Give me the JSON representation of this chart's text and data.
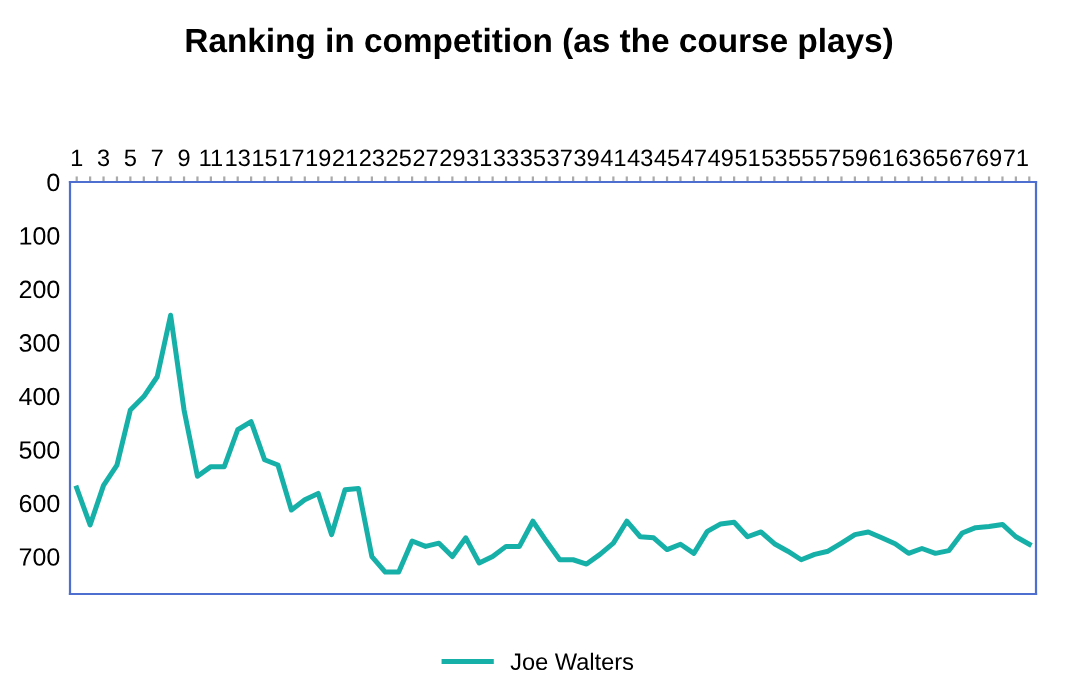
{
  "chart_data": {
    "type": "line",
    "title": "Ranking in competition (as the course plays)",
    "categories": [
      "1",
      null,
      "3",
      null,
      "5",
      null,
      "7",
      null,
      "9",
      null,
      "11",
      null,
      "13",
      null,
      "15",
      null,
      "17",
      null,
      "19",
      null,
      "21",
      null,
      "23",
      null,
      "25",
      null,
      "27",
      null,
      "29",
      null,
      "31",
      null,
      "33",
      null,
      "35",
      null,
      "37",
      null,
      "39",
      null,
      "41",
      null,
      "43",
      null,
      "45",
      null,
      "47",
      null,
      "49",
      null,
      "51",
      null,
      "53",
      null,
      "55",
      null,
      "57",
      null,
      "59",
      null,
      "61",
      null,
      "63",
      null,
      "65",
      null,
      "67",
      null,
      "69",
      null,
      "71",
      null
    ],
    "series": [
      {
        "name": "Joe Walters",
        "color": "#17b0a8",
        "values": [
          572,
          641,
          567,
          529,
          426,
          401,
          364,
          249,
          426,
          550,
          532,
          532,
          463,
          448,
          519,
          529,
          613,
          594,
          582,
          659,
          575,
          573,
          700,
          729,
          729,
          671,
          681,
          675,
          700,
          665,
          712,
          700,
          681,
          681,
          634,
          671,
          706,
          706,
          714,
          696,
          675,
          634,
          663,
          665,
          687,
          677,
          694,
          653,
          639,
          636,
          663,
          654,
          676,
          690,
          706,
          696,
          690,
          675,
          659,
          654,
          665,
          676,
          694,
          685,
          694,
          689,
          656,
          646,
          644,
          640,
          663,
          677
        ]
      }
    ],
    "ylim": [
      770,
      0
    ],
    "yticks": [
      0,
      100,
      200,
      300,
      400,
      500,
      600,
      700
    ],
    "grid": false,
    "legend": "bottom",
    "marker": "none",
    "line_style": "solid"
  }
}
